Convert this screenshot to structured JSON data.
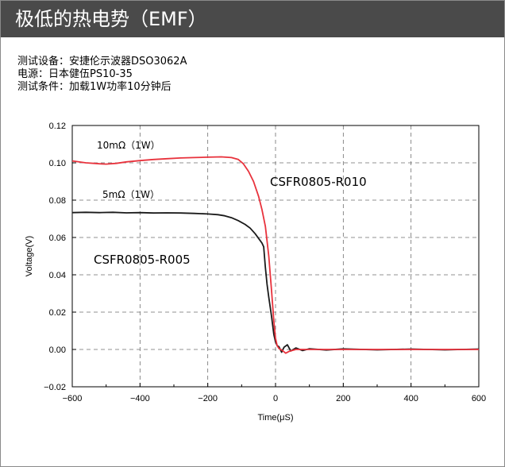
{
  "header": {
    "title": "极低的热电势（EMF）"
  },
  "specs": {
    "line1": "测试设备：安捷伦示波器DSO3062A",
    "line2": "电源：日本健伍PS10-35",
    "line3": "测试条件：加载1W功率10分钟后"
  },
  "chart_data": {
    "type": "line",
    "title": "",
    "xlabel": "Time(μS)",
    "ylabel": "Voltage(V)",
    "xlim": [
      -600,
      600
    ],
    "ylim": [
      -0.02,
      0.12
    ],
    "x_ticks": [
      "−600",
      "−400",
      "−200",
      "0",
      "200",
      "400",
      "600"
    ],
    "y_ticks": [
      "0.12",
      "0.10",
      "0.08",
      "0.06",
      "0.04",
      "0.02",
      "0.00",
      "−0.02"
    ],
    "grid": true,
    "series": [
      {
        "name": "10mΩ（1W）",
        "color": "#e8323c",
        "x": [
          -600,
          -560,
          -520,
          -500,
          -470,
          -440,
          -400,
          -360,
          -320,
          -280,
          -240,
          -200,
          -160,
          -130,
          -110,
          -95,
          -80,
          -65,
          -50,
          -40,
          -30,
          -20,
          -12,
          -5,
          0,
          5,
          10,
          20,
          30,
          40,
          60,
          100,
          200,
          300,
          400,
          500,
          600
        ],
        "y": [
          0.101,
          0.1,
          0.0995,
          0.0993,
          0.0997,
          0.1005,
          0.1012,
          0.1018,
          0.1022,
          0.1026,
          0.1028,
          0.103,
          0.1032,
          0.1028,
          0.1018,
          0.0995,
          0.0955,
          0.09,
          0.082,
          0.075,
          0.066,
          0.05,
          0.032,
          0.015,
          0.006,
          0.002,
          0.0005,
          -0.0005,
          -0.002,
          -0.001,
          0.0,
          0.0,
          0.0,
          0.0,
          0.0,
          0.0,
          0.0
        ]
      },
      {
        "name": "5mΩ（1W）",
        "color": "#1a1a1a",
        "x": [
          -600,
          -560,
          -520,
          -480,
          -440,
          -400,
          -360,
          -320,
          -280,
          -240,
          -200,
          -170,
          -150,
          -130,
          -110,
          -90,
          -75,
          -60,
          -48,
          -40,
          -35,
          -30,
          -25,
          -20,
          -12,
          -5,
          0,
          5,
          10,
          18,
          25,
          35,
          45,
          60,
          80,
          100,
          150,
          200,
          300,
          400,
          500,
          600
        ],
        "y": [
          0.0733,
          0.0735,
          0.0733,
          0.0735,
          0.0732,
          0.0733,
          0.0731,
          0.0732,
          0.0731,
          0.0729,
          0.0726,
          0.0722,
          0.0716,
          0.0706,
          0.069,
          0.067,
          0.065,
          0.062,
          0.059,
          0.057,
          0.055,
          0.044,
          0.035,
          0.028,
          0.018,
          0.008,
          0.004,
          0.002,
          0.0015,
          -0.0015,
          0.0012,
          0.0025,
          -0.0008,
          0.0008,
          -0.0006,
          0.0004,
          -0.0003,
          0.0003,
          -0.0002,
          0.0002,
          -0.0002,
          0.0002
        ]
      }
    ],
    "annotations": [
      {
        "text": "CSFR0805-R010"
      },
      {
        "text": "CSFR0805-R005"
      }
    ]
  }
}
